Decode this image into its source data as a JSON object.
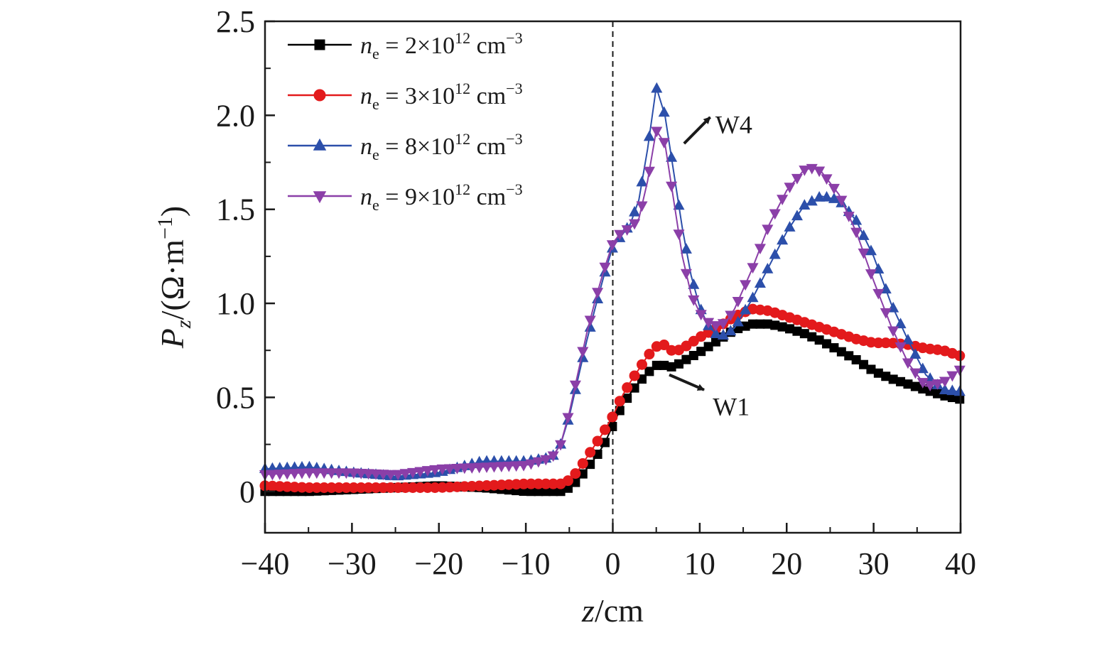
{
  "chart_data": {
    "type": "line",
    "xlabel": {
      "var": "z",
      "rest": "/cm"
    },
    "ylabel": {
      "main": "P",
      "sub": "z",
      "rest_open": "/(Ω·m",
      "sup": "−1",
      "rest_close": ")"
    },
    "xlim": [
      -40,
      40
    ],
    "ylim": [
      -0.22,
      2.5
    ],
    "xticks": [
      -40,
      -30,
      -20,
      -10,
      0,
      10,
      20,
      30,
      40
    ],
    "xtick_labels": [
      "−40",
      "−30",
      "−20",
      "−10",
      "0",
      "10",
      "20",
      "30",
      "40"
    ],
    "yticks": [
      0,
      0.5,
      1.0,
      1.5,
      2.0,
      2.5
    ],
    "ytick_labels": [
      "0",
      "0.5",
      "1.0",
      "1.5",
      "2.0",
      "2.5"
    ],
    "reference_line": {
      "x": 0,
      "style": "dashed"
    },
    "legend_position": "top-left",
    "series": [
      {
        "name": "n_e = 2×10^12 cm^-3",
        "label": {
          "n": "n",
          "sub": "e",
          "eq": " = 2×10",
          "exp": "12",
          "unit": " cm",
          "unit_exp": "−3"
        },
        "color": "#000000",
        "marker": "square",
        "x": [
          -40,
          -35,
          -30,
          -25,
          -20,
          -15,
          -10,
          -6,
          -5,
          -4,
          -3,
          -2,
          -1,
          0,
          1,
          2,
          3,
          4,
          5,
          6,
          7,
          8,
          10,
          12,
          14,
          16,
          18,
          20,
          22,
          24,
          26,
          28,
          30,
          32,
          34,
          36,
          38,
          40
        ],
        "y": [
          0.0,
          0.0,
          0.01,
          0.02,
          0.03,
          0.02,
          0.0,
          0.0,
          0.02,
          0.06,
          0.12,
          0.18,
          0.25,
          0.35,
          0.45,
          0.52,
          0.58,
          0.63,
          0.67,
          0.67,
          0.66,
          0.69,
          0.74,
          0.8,
          0.86,
          0.89,
          0.89,
          0.87,
          0.84,
          0.8,
          0.75,
          0.7,
          0.64,
          0.6,
          0.57,
          0.54,
          0.51,
          0.49
        ]
      },
      {
        "name": "n_e = 3×10^12 cm^-3",
        "label": {
          "n": "n",
          "sub": "e",
          "eq": " = 3×10",
          "exp": "12",
          "unit": " cm",
          "unit_exp": "−3"
        },
        "color": "#e31a1c",
        "marker": "circle",
        "x": [
          -40,
          -35,
          -30,
          -25,
          -20,
          -15,
          -10,
          -6,
          -5,
          -4,
          -3,
          -2,
          -1,
          0,
          1,
          2,
          3,
          4,
          5,
          6,
          7,
          8,
          10,
          12,
          14,
          16,
          18,
          20,
          22,
          24,
          26,
          28,
          30,
          32,
          34,
          36,
          38,
          40
        ],
        "y": [
          0.03,
          0.02,
          0.02,
          0.02,
          0.02,
          0.03,
          0.04,
          0.04,
          0.06,
          0.11,
          0.18,
          0.25,
          0.32,
          0.4,
          0.5,
          0.58,
          0.65,
          0.72,
          0.77,
          0.78,
          0.74,
          0.76,
          0.82,
          0.87,
          0.93,
          0.97,
          0.96,
          0.93,
          0.9,
          0.87,
          0.84,
          0.81,
          0.79,
          0.79,
          0.78,
          0.76,
          0.75,
          0.72
        ]
      },
      {
        "name": "n_e = 8×10^12 cm^-3",
        "label": {
          "n": "n",
          "sub": "e",
          "eq": " = 8×10",
          "exp": "12",
          "unit": " cm",
          "unit_exp": "−3"
        },
        "color": "#2c4faa",
        "marker": "triangle-up",
        "x": [
          -40,
          -35,
          -30,
          -25,
          -20,
          -15,
          -10,
          -7,
          -6,
          -5,
          -4,
          -3,
          -2,
          -1,
          0,
          1,
          2,
          3,
          4,
          5,
          6,
          7,
          8,
          9,
          10,
          11,
          12,
          13,
          14,
          16,
          18,
          20,
          22,
          24,
          26,
          28,
          30,
          32,
          34,
          36,
          38,
          40
        ],
        "y": [
          0.12,
          0.13,
          0.1,
          0.08,
          0.1,
          0.16,
          0.16,
          0.18,
          0.25,
          0.4,
          0.6,
          0.8,
          0.98,
          1.15,
          1.3,
          1.36,
          1.42,
          1.55,
          1.82,
          2.15,
          2.0,
          1.7,
          1.4,
          1.15,
          0.98,
          0.88,
          0.83,
          0.83,
          0.87,
          1.02,
          1.2,
          1.38,
          1.52,
          1.57,
          1.55,
          1.44,
          1.25,
          1.0,
          0.8,
          0.62,
          0.54,
          0.53
        ]
      },
      {
        "name": "n_e = 9×10^12 cm^-3",
        "label": {
          "n": "n",
          "sub": "e",
          "eq": " = 9×10",
          "exp": "12",
          "unit": " cm",
          "unit_exp": "−3"
        },
        "color": "#8b3fa8",
        "marker": "triangle-down",
        "x": [
          -40,
          -35,
          -30,
          -25,
          -20,
          -15,
          -10,
          -7,
          -6,
          -5,
          -4,
          -3,
          -2,
          -1,
          0,
          1,
          2,
          3,
          4,
          5,
          6,
          7,
          8,
          9,
          10,
          11,
          12,
          13,
          14,
          16,
          18,
          20,
          22,
          23,
          24,
          26,
          28,
          30,
          32,
          34,
          36,
          38,
          40
        ],
        "y": [
          0.09,
          0.1,
          0.1,
          0.09,
          0.12,
          0.13,
          0.14,
          0.18,
          0.25,
          0.42,
          0.63,
          0.84,
          1.02,
          1.18,
          1.32,
          1.38,
          1.4,
          1.45,
          1.65,
          1.92,
          1.85,
          1.55,
          1.25,
          1.05,
          0.95,
          0.9,
          0.88,
          0.9,
          0.97,
          1.18,
          1.42,
          1.6,
          1.71,
          1.72,
          1.7,
          1.58,
          1.38,
          1.12,
          0.88,
          0.68,
          0.56,
          0.58,
          0.65
        ]
      }
    ],
    "annotations": [
      {
        "text": "W4",
        "arrow_from": [
          8.2,
          1.85
        ],
        "arrow_to": [
          11.2,
          1.99
        ],
        "text_at": [
          11.8,
          1.95
        ]
      },
      {
        "text": "W1",
        "arrow_from": [
          6.5,
          0.62
        ],
        "arrow_to": [
          10.5,
          0.54
        ],
        "text_at": [
          11.5,
          0.45
        ]
      }
    ]
  }
}
